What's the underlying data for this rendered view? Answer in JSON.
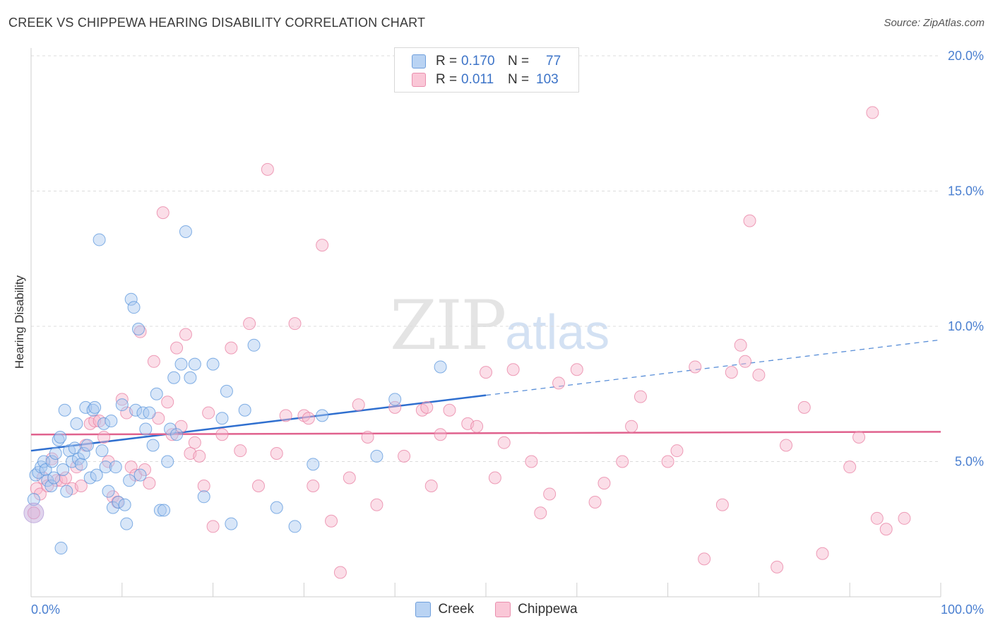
{
  "title": "CREEK VS CHIPPEWA HEARING DISABILITY CORRELATION CHART",
  "source": "Source: ZipAtlas.com",
  "watermark": {
    "zip": "ZIP",
    "atlas": "atlas"
  },
  "legend": {
    "rows": [
      {
        "r_label": "R =",
        "r_value": "0.170",
        "n_label": "N =",
        "n_value": "77",
        "color": "#a9c8f0"
      },
      {
        "r_label": "R =",
        "r_value": "0.011",
        "n_label": "N =",
        "n_value": "103",
        "color": "#f7b6cb"
      }
    ]
  },
  "chart_data": {
    "type": "scatter",
    "title": "CREEK VS CHIPPEWA HEARING DISABILITY CORRELATION CHART",
    "xlabel": "",
    "ylabel": "Hearing Disability",
    "xlim": [
      0,
      100
    ],
    "ylim": [
      0,
      20
    ],
    "x_tick_labels": [
      "0.0%",
      "100.0%"
    ],
    "y_ticks": [
      5,
      10,
      15,
      20
    ],
    "y_tick_labels": [
      "5.0%",
      "10.0%",
      "15.0%",
      "20.0%"
    ],
    "grid": true,
    "legend_position": "top-center",
    "series": [
      {
        "name": "Creek",
        "color": "#5a95dc",
        "fill": "#a9c8f0",
        "trend": {
          "x0": 0,
          "y0": 5.4,
          "x1": 100,
          "y1": 9.5,
          "solid_until": 50
        },
        "points": [
          [
            0.3,
            3.6
          ],
          [
            0.5,
            4.5
          ],
          [
            0.8,
            4.6
          ],
          [
            1.1,
            4.8
          ],
          [
            1.4,
            5.0
          ],
          [
            1.6,
            4.7
          ],
          [
            1.8,
            4.3
          ],
          [
            2.2,
            4.1
          ],
          [
            2.3,
            5.0
          ],
          [
            2.5,
            4.4
          ],
          [
            2.7,
            5.3
          ],
          [
            3.0,
            5.8
          ],
          [
            3.2,
            5.9
          ],
          [
            3.5,
            4.7
          ],
          [
            3.7,
            6.9
          ],
          [
            3.9,
            3.9
          ],
          [
            4.2,
            5.4
          ],
          [
            4.5,
            5.0
          ],
          [
            4.8,
            5.5
          ],
          [
            5.0,
            6.4
          ],
          [
            5.2,
            5.1
          ],
          [
            5.5,
            4.9
          ],
          [
            5.8,
            5.3
          ],
          [
            6.0,
            7.0
          ],
          [
            6.2,
            5.6
          ],
          [
            6.5,
            4.4
          ],
          [
            6.8,
            6.9
          ],
          [
            7.0,
            7.0
          ],
          [
            7.2,
            4.5
          ],
          [
            7.5,
            13.2
          ],
          [
            7.8,
            5.4
          ],
          [
            8.0,
            6.4
          ],
          [
            8.2,
            4.8
          ],
          [
            8.5,
            3.9
          ],
          [
            8.8,
            6.5
          ],
          [
            9.0,
            3.3
          ],
          [
            9.3,
            4.8
          ],
          [
            9.6,
            3.5
          ],
          [
            10.0,
            7.1
          ],
          [
            10.3,
            3.4
          ],
          [
            10.5,
            2.7
          ],
          [
            10.8,
            4.3
          ],
          [
            11.0,
            11.0
          ],
          [
            11.3,
            10.7
          ],
          [
            11.5,
            6.9
          ],
          [
            11.8,
            9.9
          ],
          [
            12.0,
            4.5
          ],
          [
            12.3,
            6.8
          ],
          [
            12.6,
            6.2
          ],
          [
            13.0,
            6.8
          ],
          [
            13.4,
            5.6
          ],
          [
            13.8,
            7.5
          ],
          [
            14.2,
            3.2
          ],
          [
            14.6,
            3.2
          ],
          [
            15.0,
            5.0
          ],
          [
            15.3,
            6.2
          ],
          [
            15.7,
            8.1
          ],
          [
            16.0,
            6.0
          ],
          [
            16.5,
            8.6
          ],
          [
            17.0,
            13.5
          ],
          [
            17.5,
            8.1
          ],
          [
            18.0,
            8.6
          ],
          [
            19.0,
            3.7
          ],
          [
            20.0,
            8.6
          ],
          [
            21.0,
            6.6
          ],
          [
            21.5,
            7.6
          ],
          [
            22.0,
            2.7
          ],
          [
            23.5,
            6.9
          ],
          [
            24.5,
            9.3
          ],
          [
            27.0,
            3.3
          ],
          [
            29.0,
            2.6
          ],
          [
            31.0,
            4.9
          ],
          [
            32.0,
            6.7
          ],
          [
            38.0,
            5.2
          ],
          [
            40.0,
            7.3
          ],
          [
            45.0,
            8.5
          ],
          [
            3.3,
            1.8
          ]
        ]
      },
      {
        "name": "Chippewa",
        "color": "#e87fa2",
        "fill": "#f7b6cb",
        "trend": {
          "x0": 0,
          "y0": 6.0,
          "x1": 100,
          "y1": 6.1
        },
        "points": [
          [
            0.3,
            3.1
          ],
          [
            0.6,
            4.0
          ],
          [
            1.0,
            3.8
          ],
          [
            1.3,
            4.4
          ],
          [
            1.8,
            4.1
          ],
          [
            2.3,
            5.1
          ],
          [
            2.8,
            4.3
          ],
          [
            3.3,
            4.3
          ],
          [
            3.8,
            4.4
          ],
          [
            4.5,
            4.0
          ],
          [
            5.0,
            4.8
          ],
          [
            5.5,
            4.1
          ],
          [
            6.0,
            5.6
          ],
          [
            6.5,
            6.4
          ],
          [
            7.0,
            6.5
          ],
          [
            7.5,
            6.5
          ],
          [
            8.0,
            5.9
          ],
          [
            8.5,
            5.0
          ],
          [
            9.0,
            3.7
          ],
          [
            9.5,
            3.5
          ],
          [
            10.0,
            7.3
          ],
          [
            10.5,
            6.8
          ],
          [
            11.0,
            4.8
          ],
          [
            11.5,
            4.5
          ],
          [
            12.0,
            9.8
          ],
          [
            12.5,
            4.7
          ],
          [
            13.0,
            4.2
          ],
          [
            13.5,
            8.7
          ],
          [
            14.0,
            6.6
          ],
          [
            14.5,
            14.2
          ],
          [
            15.0,
            7.2
          ],
          [
            15.5,
            6.0
          ],
          [
            16.0,
            9.2
          ],
          [
            16.5,
            6.3
          ],
          [
            17.0,
            9.7
          ],
          [
            17.5,
            5.3
          ],
          [
            18.0,
            5.7
          ],
          [
            18.5,
            5.2
          ],
          [
            19.0,
            4.1
          ],
          [
            19.5,
            6.8
          ],
          [
            20.0,
            2.6
          ],
          [
            21.0,
            6.0
          ],
          [
            22.0,
            9.2
          ],
          [
            23.0,
            5.4
          ],
          [
            24.0,
            10.1
          ],
          [
            25.0,
            4.1
          ],
          [
            26.0,
            15.8
          ],
          [
            27.0,
            5.3
          ],
          [
            28.0,
            6.7
          ],
          [
            29.0,
            10.1
          ],
          [
            30.0,
            6.7
          ],
          [
            30.5,
            6.6
          ],
          [
            31.0,
            4.1
          ],
          [
            32.0,
            13.0
          ],
          [
            33.0,
            2.8
          ],
          [
            34.0,
            0.9
          ],
          [
            35.0,
            4.4
          ],
          [
            36.0,
            7.1
          ],
          [
            37.0,
            5.9
          ],
          [
            38.0,
            3.4
          ],
          [
            40.0,
            7.0
          ],
          [
            41.0,
            5.2
          ],
          [
            43.0,
            6.9
          ],
          [
            43.5,
            7.0
          ],
          [
            44.0,
            4.1
          ],
          [
            45.0,
            6.0
          ],
          [
            46.0,
            6.9
          ],
          [
            48.0,
            6.4
          ],
          [
            49.0,
            6.3
          ],
          [
            50.0,
            8.3
          ],
          [
            51.0,
            4.4
          ],
          [
            52.0,
            5.7
          ],
          [
            53.0,
            8.4
          ],
          [
            55.0,
            5.0
          ],
          [
            56.0,
            3.1
          ],
          [
            57.0,
            3.8
          ],
          [
            58.0,
            7.9
          ],
          [
            60.0,
            8.4
          ],
          [
            62.0,
            3.5
          ],
          [
            63.0,
            4.2
          ],
          [
            65.0,
            5.0
          ],
          [
            66.0,
            6.3
          ],
          [
            67.0,
            7.4
          ],
          [
            70.0,
            5.0
          ],
          [
            71.0,
            5.4
          ],
          [
            73.0,
            8.5
          ],
          [
            74.0,
            1.4
          ],
          [
            76.0,
            3.4
          ],
          [
            77.0,
            8.3
          ],
          [
            78.0,
            9.3
          ],
          [
            78.5,
            8.7
          ],
          [
            79.0,
            13.9
          ],
          [
            80.0,
            8.2
          ],
          [
            82.0,
            1.1
          ],
          [
            83.0,
            5.6
          ],
          [
            85.0,
            7.0
          ],
          [
            87.0,
            1.6
          ],
          [
            90.0,
            4.8
          ],
          [
            91.0,
            5.9
          ],
          [
            92.5,
            17.9
          ],
          [
            93.0,
            2.9
          ],
          [
            94.0,
            2.5
          ],
          [
            96.0,
            2.9
          ]
        ]
      }
    ]
  }
}
